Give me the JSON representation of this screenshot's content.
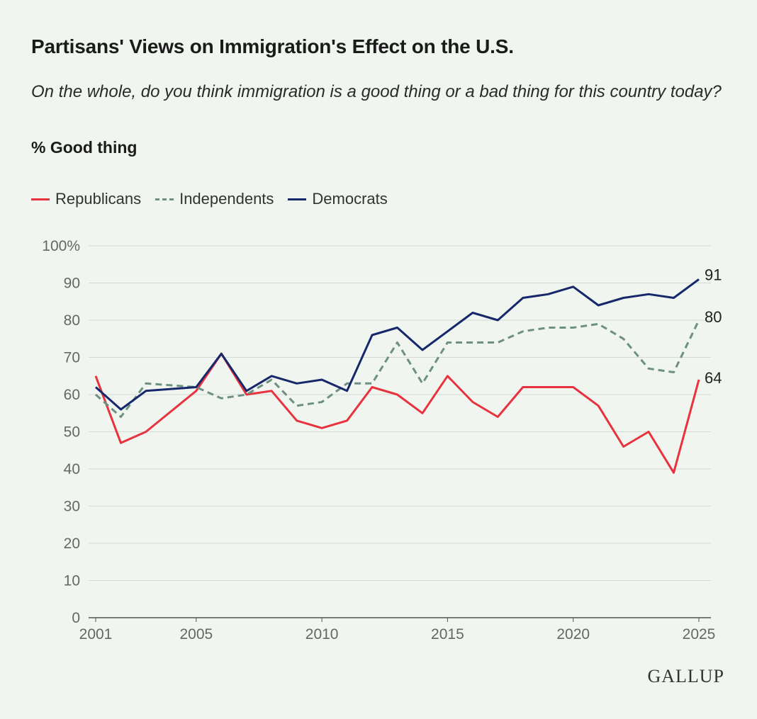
{
  "title": "Partisans' Views on Immigration's Effect on the U.S.",
  "subtitle": "On the whole, do you think immigration is a good thing or a bad thing for this country today?",
  "measure": "% Good thing",
  "brand": "GALLUP",
  "chart_data": {
    "type": "line",
    "x": [
      2001,
      2002,
      2003,
      2005,
      2006,
      2007,
      2008,
      2009,
      2010,
      2011,
      2012,
      2013,
      2014,
      2015,
      2016,
      2017,
      2018,
      2019,
      2020,
      2021,
      2022,
      2023,
      2024,
      2025
    ],
    "series": [
      {
        "name": "Republicans",
        "color": "#e8333f",
        "dash": "solid",
        "values": [
          65,
          47,
          50,
          61,
          71,
          60,
          61,
          53,
          51,
          53,
          62,
          60,
          55,
          65,
          58,
          54,
          62,
          62,
          62,
          57,
          46,
          50,
          39,
          64
        ]
      },
      {
        "name": "Independents",
        "color": "#6e8f84",
        "dash": "dashed",
        "values": [
          60,
          54,
          63,
          62,
          59,
          60,
          64,
          57,
          58,
          63,
          63,
          74,
          63,
          74,
          74,
          74,
          77,
          78,
          78,
          79,
          75,
          67,
          66,
          80
        ]
      },
      {
        "name": "Democrats",
        "color": "#16286b",
        "dash": "solid",
        "values": [
          62,
          56,
          61,
          62,
          71,
          61,
          65,
          63,
          64,
          61,
          76,
          78,
          72,
          77,
          82,
          80,
          86,
          87,
          89,
          84,
          86,
          87,
          86,
          91
        ]
      }
    ],
    "end_labels": [
      "91",
      "80",
      "64"
    ],
    "ylim": [
      0,
      100
    ],
    "y_ticks": [
      "0",
      "10",
      "20",
      "30",
      "40",
      "50",
      "60",
      "70",
      "80",
      "90",
      "100%"
    ],
    "x_ticks": [
      "2001",
      "2005",
      "2010",
      "2015",
      "2020",
      "2025"
    ],
    "grid": true,
    "legend": "top-left",
    "xlabel": "",
    "ylabel": ""
  }
}
